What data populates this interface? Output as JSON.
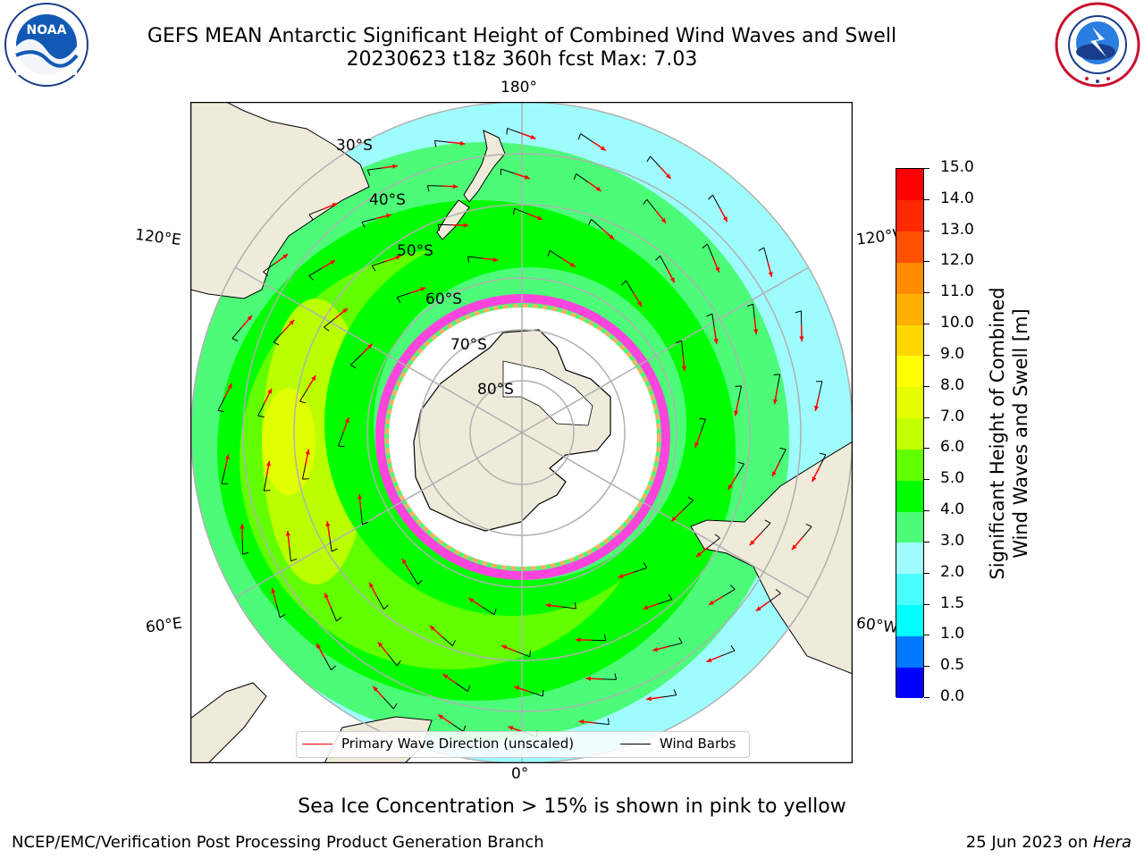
{
  "title": {
    "line1": "GEFS MEAN Antarctic Significant Height of Combined Wind Waves and Swell",
    "line2": "20230623 t18z 360h fcst   Max: 7.03"
  },
  "logos": {
    "left": {
      "name": "noaa-logo",
      "text": "NOAA"
    },
    "right": {
      "name": "national-weather-service-logo",
      "text": "NATIONAL WEATHER SERVICE"
    }
  },
  "map": {
    "projection": "south-polar-stereographic",
    "lon_labels": {
      "top": "180°",
      "bottom": "0°",
      "left_upper": "120°E",
      "left_lower": "60°E",
      "right_upper": "120°W",
      "right_lower": "60°W"
    },
    "lat_labels": [
      "30°S",
      "40°S",
      "50°S",
      "60°S",
      "70°S",
      "80°S"
    ],
    "colors": {
      "ocean_low": "#9efcfc",
      "land": "#efebdb",
      "ice_shelf": "#ffffff",
      "grid": "#b0b0b0",
      "arrow": "#ff0000",
      "barb": "#000000"
    }
  },
  "colorbar": {
    "title_line1": "Significant Height of Combined",
    "title_line2": "Wind Waves and Swell [m]",
    "ticks": [
      "15.0",
      "14.0",
      "13.0",
      "12.0",
      "11.0",
      "10.0",
      "9.0",
      "8.0",
      "7.0",
      "6.0",
      "5.0",
      "4.0",
      "3.0",
      "2.0",
      "1.5",
      "1.0",
      "0.5",
      "0.0"
    ],
    "segment_colors": [
      "#0000ff",
      "#0078ff",
      "#00ffff",
      "#49fefe",
      "#9efcfc",
      "#4cfc78",
      "#00ff00",
      "#62ff00",
      "#c4ff00",
      "#e6ff00",
      "#ffff00",
      "#ffd700",
      "#ffaf00",
      "#ff8c00",
      "#ff5000",
      "#ff2800",
      "#ff0000"
    ]
  },
  "legend": {
    "wave_label": "Primary Wave Direction (unscaled)",
    "barb_label": "Wind Barbs"
  },
  "note": "Sea Ice Concentration > 15% is shown in pink to yellow",
  "footer": {
    "left": "NCEP/EMC/Verification Post Processing Product Generation Branch",
    "right_prefix": "25 Jun 2023 on ",
    "right_machine": "Hera"
  }
}
